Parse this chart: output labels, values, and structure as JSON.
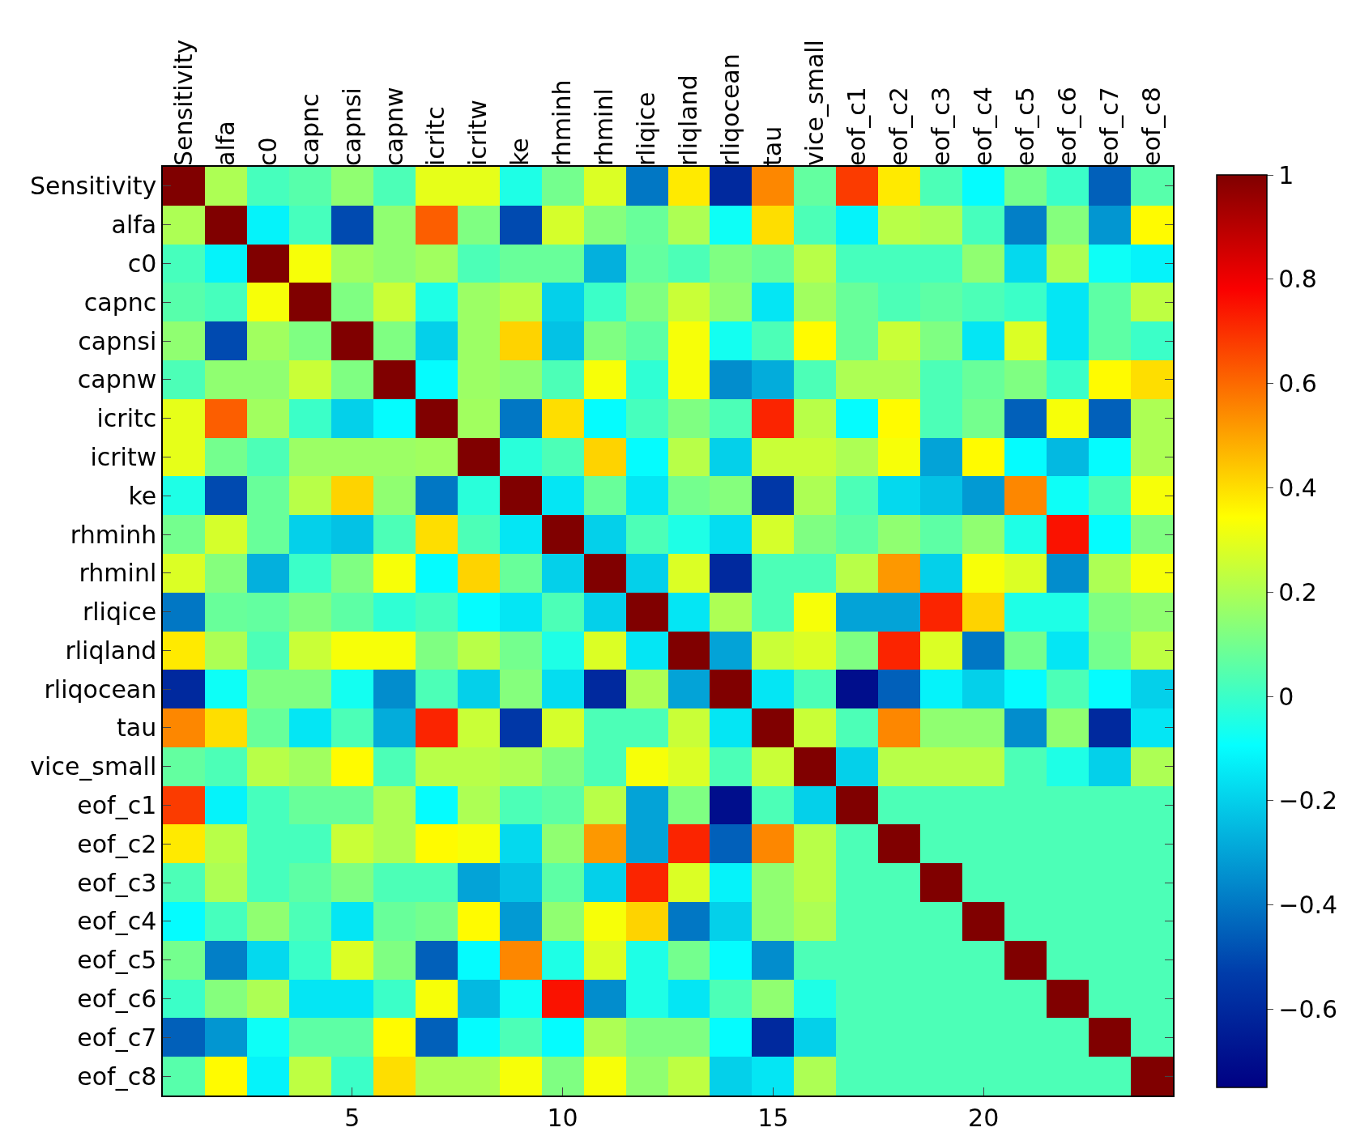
{
  "chart_data": {
    "type": "heatmap",
    "categories": [
      "Sensitivity",
      "alfa",
      "c0",
      "capnc",
      "capnsi",
      "capnw",
      "icritc",
      "icritw",
      "ke",
      "rhminh",
      "rhminl",
      "rliqice",
      "rliqland",
      "rliqocean",
      "tau",
      "vice_small",
      "eof_c1",
      "eof_c2",
      "eof_c3",
      "eof_c4",
      "eof_c5",
      "eof_c6",
      "eof_c7",
      "eof_c8"
    ],
    "y_categories": [
      "Sensitivity",
      "alfa",
      "c0",
      "capnc",
      "capnsi",
      "capnw",
      "icritc",
      "icritw",
      "ke",
      "rhminh",
      "rhminl",
      "rliqice",
      "rliqland",
      "rliqocean",
      "tau",
      "vice_small",
      "eof_c1",
      "eof_c2",
      "eof_c3",
      "eof_c4",
      "eof_c5",
      "eof_c6",
      "eof_c7",
      "eof_c8"
    ],
    "x2lim": [
      0.5,
      24.5
    ],
    "x2ticks": [
      5,
      10,
      15,
      20
    ],
    "clim": [
      -0.75,
      1
    ],
    "cticks": [
      {
        "value": -0.6,
        "label": "−0.6"
      },
      {
        "value": -0.4,
        "label": "−0.4"
      },
      {
        "value": -0.2,
        "label": "−0.2"
      },
      0,
      0.2,
      0.4,
      0.6,
      0.8,
      1
    ],
    "cells": [
      [
        1,
        0.2,
        0.02,
        0.05,
        0.15,
        0.03,
        0.3,
        0.3,
        -0.05,
        0.1,
        0.28,
        -0.4,
        0.38,
        -0.6,
        0.55,
        0.07,
        0.68,
        0.38,
        0.03,
        -0.1,
        0.1,
        0,
        -0.45,
        0.05
      ],
      [
        0.2,
        1,
        -0.12,
        0.02,
        -0.5,
        0.15,
        0.62,
        0.12,
        -0.5,
        0.27,
        0.13,
        0.08,
        0.2,
        -0.08,
        0.4,
        0.03,
        -0.12,
        0.22,
        0.2,
        0.02,
        -0.38,
        0.13,
        -0.33,
        0.35
      ],
      [
        0.02,
        -0.12,
        1,
        0.33,
        0.18,
        0.15,
        0.18,
        0.03,
        0.08,
        0.08,
        -0.27,
        0.07,
        0.03,
        0.12,
        0.08,
        0.22,
        0.02,
        0.02,
        0.02,
        0.15,
        -0.18,
        0.2,
        -0.08,
        -0.12
      ],
      [
        0.05,
        0.02,
        0.33,
        1,
        0.12,
        0.25,
        -0.05,
        0.17,
        0.22,
        -0.2,
        0,
        0.12,
        0.25,
        0.15,
        -0.15,
        0.18,
        0.08,
        0.03,
        0.06,
        0.03,
        0,
        -0.15,
        0.06,
        0.23
      ],
      [
        0.15,
        -0.5,
        0.18,
        0.12,
        1,
        0.12,
        -0.2,
        0.17,
        0.42,
        -0.23,
        0.12,
        0.06,
        0.33,
        -0.07,
        0.03,
        0.35,
        0.08,
        0.25,
        0.12,
        -0.15,
        0.28,
        -0.15,
        0.06,
        0
      ],
      [
        0.03,
        0.15,
        0.15,
        0.25,
        0.12,
        1,
        -0.1,
        0.17,
        0.15,
        0.03,
        0.33,
        -0.02,
        0.33,
        -0.35,
        -0.28,
        0.03,
        0.2,
        0.2,
        0.03,
        0.08,
        0.12,
        0,
        0.35,
        0.4
      ],
      [
        0.3,
        0.62,
        0.18,
        0,
        -0.2,
        -0.1,
        1,
        0.18,
        -0.4,
        0.4,
        -0.1,
        0.02,
        0.12,
        0.03,
        0.72,
        0.22,
        -0.1,
        0.35,
        0.03,
        0.1,
        -0.45,
        0.33,
        -0.45,
        0.2
      ],
      [
        0.3,
        0.1,
        0.03,
        0.17,
        0.17,
        0.17,
        0.18,
        1,
        -0.03,
        0.03,
        0.42,
        -0.1,
        0.22,
        -0.2,
        0.25,
        0.25,
        0.2,
        0.33,
        -0.3,
        0.35,
        -0.1,
        -0.25,
        -0.1,
        0.2
      ],
      [
        -0.05,
        -0.5,
        0.08,
        0.22,
        0.42,
        0.15,
        -0.4,
        -0.03,
        1,
        -0.15,
        0.08,
        -0.15,
        0.1,
        0.13,
        -0.55,
        0.2,
        0.03,
        -0.18,
        -0.23,
        -0.32,
        0.55,
        -0.08,
        0.03,
        0.33
      ],
      [
        0.1,
        0.27,
        0.08,
        -0.2,
        -0.23,
        0.03,
        0.4,
        0.03,
        -0.15,
        1,
        -0.2,
        0.03,
        -0.05,
        -0.17,
        0.27,
        0.12,
        0.06,
        0.15,
        0.06,
        0.15,
        -0.05,
        0.75,
        -0.1,
        0.12
      ],
      [
        0.28,
        0.13,
        -0.27,
        0,
        0.12,
        0.33,
        -0.1,
        0.42,
        0.08,
        -0.2,
        1,
        -0.2,
        0.28,
        -0.6,
        0.03,
        0.03,
        0.22,
        0.52,
        -0.2,
        0.33,
        0.28,
        -0.35,
        0.2,
        0.33
      ],
      [
        -0.4,
        0.08,
        0.07,
        0.12,
        0.06,
        -0.02,
        0.02,
        -0.1,
        -0.15,
        0.03,
        -0.2,
        1,
        -0.15,
        0.2,
        0.03,
        0.33,
        -0.3,
        -0.3,
        0.72,
        0.42,
        -0.05,
        -0.05,
        0.12,
        0.15
      ],
      [
        0.38,
        0.2,
        0.03,
        0.25,
        0.33,
        0.33,
        0.12,
        0.22,
        0.1,
        -0.05,
        0.28,
        -0.15,
        1,
        -0.3,
        0.25,
        0.28,
        0.12,
        0.72,
        0.28,
        -0.4,
        0.1,
        -0.15,
        0.1,
        0.23
      ],
      [
        -0.6,
        -0.08,
        0.12,
        0.12,
        -0.07,
        -0.35,
        0.03,
        -0.2,
        0.13,
        -0.17,
        -0.6,
        0.2,
        -0.3,
        1,
        -0.15,
        0.03,
        -0.7,
        -0.45,
        -0.12,
        -0.2,
        -0.1,
        0.03,
        -0.1,
        -0.2
      ],
      [
        0.55,
        0.4,
        0.08,
        -0.15,
        0.03,
        -0.28,
        0.72,
        0.25,
        -0.55,
        0.27,
        0.03,
        0.03,
        0.25,
        -0.15,
        1,
        0.25,
        0.03,
        0.55,
        0.15,
        0.15,
        -0.35,
        0.15,
        -0.6,
        -0.15
      ],
      [
        0.07,
        0.03,
        0.22,
        0.18,
        0.35,
        0.03,
        0.22,
        0.22,
        0.2,
        0.12,
        0.03,
        0.33,
        0.28,
        0.03,
        0.25,
        1,
        -0.2,
        0.22,
        0.22,
        0.22,
        0.03,
        -0.05,
        -0.2,
        0.2
      ],
      [
        0.68,
        -0.12,
        0.02,
        0.08,
        0.08,
        0.2,
        -0.1,
        0.2,
        0.03,
        0.06,
        0.22,
        -0.3,
        0.12,
        -0.7,
        0.03,
        -0.2,
        1,
        0.03,
        0.03,
        0.03,
        0.03,
        0.03,
        0.03,
        0.03
      ],
      [
        0.38,
        0.22,
        0.02,
        0.02,
        0.25,
        0.2,
        0.35,
        0.33,
        -0.18,
        0.15,
        0.52,
        -0.3,
        0.72,
        -0.45,
        0.55,
        0.22,
        0.03,
        1,
        0.03,
        0.03,
        0.03,
        0.03,
        0.03,
        0.03
      ],
      [
        0.03,
        0.2,
        0.02,
        0.06,
        0.12,
        0.03,
        0.03,
        -0.3,
        -0.23,
        0.06,
        -0.2,
        0.72,
        0.28,
        -0.12,
        0.15,
        0.22,
        0.03,
        0.03,
        1,
        0.03,
        0.03,
        0.03,
        0.03,
        0.03
      ],
      [
        -0.1,
        0.02,
        0.15,
        0.03,
        -0.15,
        0.08,
        0.1,
        0.35,
        -0.32,
        0.15,
        0.33,
        0.42,
        -0.4,
        -0.2,
        0.15,
        0.2,
        0.03,
        0.03,
        0.03,
        1,
        0.03,
        0.03,
        0.03,
        0.03
      ],
      [
        0.1,
        -0.38,
        -0.18,
        0,
        0.28,
        0.12,
        -0.45,
        -0.1,
        0.55,
        -0.05,
        0.28,
        -0.05,
        0.1,
        -0.1,
        -0.35,
        0.03,
        0.03,
        0.03,
        0.03,
        0.03,
        1,
        0.03,
        0.03,
        0.03
      ],
      [
        0,
        0.13,
        0.2,
        -0.15,
        -0.15,
        0,
        0.33,
        -0.25,
        -0.08,
        0.75,
        -0.35,
        -0.05,
        -0.15,
        0.03,
        0.15,
        -0.05,
        0.03,
        0.03,
        0.03,
        0.03,
        0.03,
        1,
        0.03,
        0.03
      ],
      [
        -0.45,
        -0.33,
        -0.08,
        0.06,
        0.06,
        0.35,
        -0.45,
        -0.1,
        0.03,
        -0.1,
        0.2,
        0.12,
        0.12,
        -0.1,
        -0.6,
        -0.2,
        0.03,
        0.03,
        0.03,
        0.03,
        0.03,
        0.03,
        1,
        0.03
      ],
      [
        0.05,
        0.35,
        -0.12,
        0.23,
        0,
        0.4,
        0.2,
        0.2,
        0.33,
        0.12,
        0.33,
        0.15,
        0.23,
        -0.2,
        -0.15,
        0.2,
        0.03,
        0.03,
        0.03,
        0.03,
        0.03,
        0.03,
        0.03,
        1
      ]
    ]
  }
}
